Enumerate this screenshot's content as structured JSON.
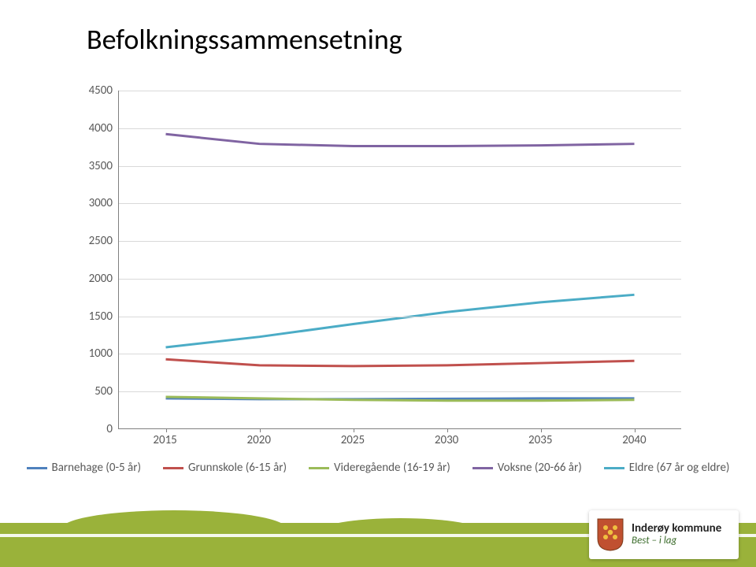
{
  "title": {
    "text": "Befolkningssammensetning",
    "fontsize": 36,
    "color": "#000000"
  },
  "chart": {
    "type": "line",
    "background_color": "#ffffff",
    "grid_color": "#d9d9d9",
    "axis_color": "#808080",
    "label_color": "#595959",
    "label_fontsize": 15,
    "xlim": [
      2015,
      2040
    ],
    "ylim": [
      0,
      4500
    ],
    "ytick_step": 500,
    "x_categories": [
      "2015",
      "2020",
      "2025",
      "2030",
      "2035",
      "2040"
    ],
    "y_ticks": [
      "0",
      "500",
      "1000",
      "1500",
      "2000",
      "2500",
      "3000",
      "3500",
      "4000",
      "4500"
    ],
    "line_width": 3,
    "series": [
      {
        "name": "Barnehage (0-5 år)",
        "color": "#4f81bd",
        "values": [
          400,
          390,
          390,
          395,
          400,
          400
        ]
      },
      {
        "name": "Grunnskole (6-15 år)",
        "color": "#c0504d",
        "values": [
          920,
          840,
          830,
          840,
          870,
          900
        ]
      },
      {
        "name": "Videregående (16-19 år)",
        "color": "#9bbb59",
        "values": [
          420,
          400,
          380,
          370,
          370,
          380
        ]
      },
      {
        "name": "Voksne (20-66 år)",
        "color": "#8064a2",
        "values": [
          3920,
          3790,
          3760,
          3760,
          3770,
          3790
        ]
      },
      {
        "name": "Eldre (67 år og eldre)",
        "color": "#4bacc6",
        "values": [
          1080,
          1220,
          1390,
          1550,
          1680,
          1780
        ]
      }
    ]
  },
  "legend": {
    "fontsize": 15,
    "swatch_width": 26
  },
  "logo": {
    "name": "Inderøy kommune",
    "slogan": "Best – i lag",
    "name_fontsize": 15,
    "slogan_fontsize": 13,
    "crest_red": "#b99062",
    "crest_gold": "#e0a030"
  },
  "footer": {
    "grass_color": "#9ab23a"
  }
}
